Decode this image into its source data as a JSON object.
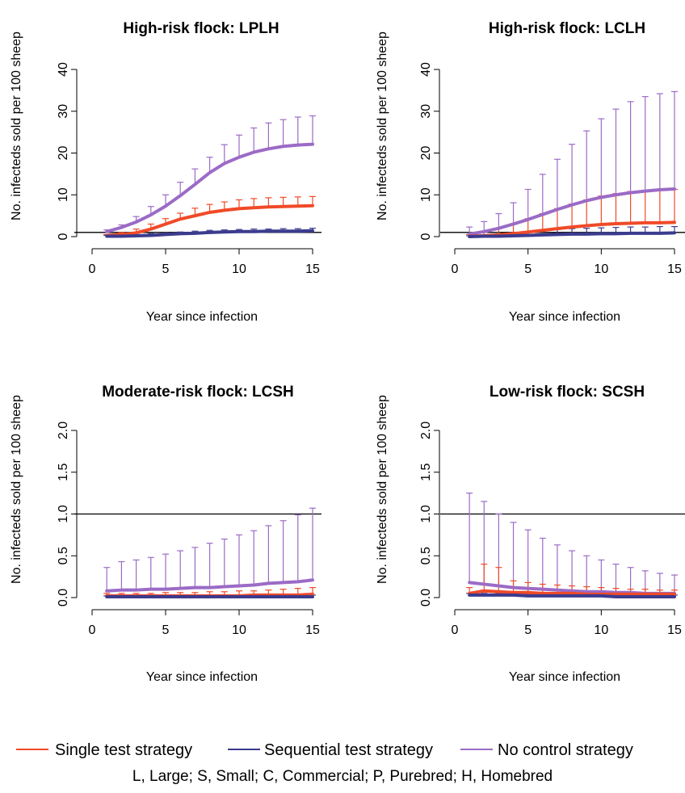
{
  "colors": {
    "single": "#f04a28",
    "sequential": "#3b3b8e",
    "nocontrol": "#9b6bc6",
    "axis": "#000000",
    "reference_line": "#000000"
  },
  "legend": {
    "items": [
      {
        "label": "Single test strategy",
        "color": "#f04a28"
      },
      {
        "label": "Sequential test strategy",
        "color": "#3b3b8e"
      },
      {
        "label": "No control strategy",
        "color": "#9b6bc6"
      }
    ],
    "note": "L, Large; S, Small; C, Commercial; P, Purebred; H, Homebred"
  },
  "chart_data": [
    {
      "type": "line",
      "title": "High-risk flock: LPLH",
      "xlabel": "Year since infection",
      "ylabel": "No. infecteds sold per 100 sheep",
      "x": [
        1,
        2,
        3,
        4,
        5,
        6,
        7,
        8,
        9,
        10,
        11,
        12,
        13,
        14,
        15
      ],
      "xlim": [
        0,
        15
      ],
      "xticks": [
        0,
        5,
        10,
        15
      ],
      "ylim": [
        0,
        40
      ],
      "yticks": [
        "0",
        "10",
        "20",
        "30",
        "40"
      ],
      "reference_line": 1.0,
      "series": [
        {
          "name": "Single test strategy",
          "key": "single",
          "values": [
            0.3,
            0.5,
            0.9,
            1.8,
            3.0,
            4.2,
            5.0,
            5.8,
            6.3,
            6.7,
            6.9,
            7.1,
            7.2,
            7.3,
            7.4
          ],
          "upper": [
            0.5,
            1.0,
            1.8,
            3.0,
            4.3,
            5.6,
            6.8,
            7.7,
            8.3,
            8.8,
            9.1,
            9.3,
            9.4,
            9.5,
            9.6
          ]
        },
        {
          "name": "Sequential test strategy",
          "key": "sequential",
          "values": [
            0.1,
            0.1,
            0.2,
            0.3,
            0.5,
            0.7,
            0.8,
            1.0,
            1.1,
            1.2,
            1.2,
            1.3,
            1.3,
            1.3,
            1.4
          ],
          "upper": [
            0.3,
            0.4,
            0.5,
            0.7,
            0.9,
            1.1,
            1.3,
            1.5,
            1.6,
            1.7,
            1.8,
            1.8,
            1.9,
            1.9,
            2.0
          ]
        },
        {
          "name": "No control strategy",
          "key": "nocontrol",
          "values": [
            1.2,
            2.2,
            3.5,
            5.2,
            7.3,
            9.8,
            12.5,
            15.3,
            17.5,
            19.0,
            20.2,
            21.0,
            21.6,
            21.9,
            22.1
          ],
          "upper": [
            1.6,
            2.8,
            4.8,
            7.2,
            10.0,
            13.0,
            16.2,
            19.0,
            22.0,
            24.3,
            26.0,
            27.2,
            28.0,
            28.6,
            28.9
          ]
        }
      ]
    },
    {
      "type": "line",
      "title": "High-risk flock: LCLH",
      "xlabel": "Year since infection",
      "ylabel": "No. infecteds sold per 100 sheep",
      "x": [
        1,
        2,
        3,
        4,
        5,
        6,
        7,
        8,
        9,
        10,
        11,
        12,
        13,
        14,
        15
      ],
      "xlim": [
        0,
        15
      ],
      "xticks": [
        0,
        5,
        10,
        15
      ],
      "ylim": [
        0,
        40
      ],
      "yticks": [
        "0",
        "10",
        "20",
        "30",
        "40"
      ],
      "reference_line": 1.0,
      "series": [
        {
          "name": "Single test strategy",
          "key": "single",
          "values": [
            0.1,
            0.2,
            0.4,
            0.7,
            1.1,
            1.5,
            1.9,
            2.3,
            2.6,
            2.9,
            3.1,
            3.2,
            3.3,
            3.3,
            3.4
          ],
          "upper": [
            0.5,
            1.0,
            1.9,
            3.0,
            4.3,
            5.5,
            6.7,
            7.8,
            8.8,
            9.7,
            10.3,
            10.8,
            11.0,
            11.2,
            11.3
          ]
        },
        {
          "name": "Sequential test strategy",
          "key": "sequential",
          "values": [
            0.0,
            0.1,
            0.1,
            0.2,
            0.3,
            0.4,
            0.5,
            0.6,
            0.6,
            0.7,
            0.7,
            0.8,
            0.8,
            0.8,
            0.9
          ],
          "upper": [
            0.2,
            0.4,
            0.6,
            0.9,
            1.2,
            1.5,
            1.7,
            1.9,
            2.0,
            2.1,
            2.2,
            2.3,
            2.3,
            2.4,
            2.4
          ]
        },
        {
          "name": "No control strategy",
          "key": "nocontrol",
          "values": [
            0.6,
            1.2,
            2.0,
            3.0,
            4.1,
            5.3,
            6.5,
            7.6,
            8.6,
            9.4,
            10.0,
            10.5,
            10.9,
            11.2,
            11.4
          ],
          "upper": [
            2.3,
            3.6,
            5.5,
            8.1,
            11.3,
            14.9,
            18.5,
            22.1,
            25.3,
            28.2,
            30.5,
            32.3,
            33.5,
            34.2,
            34.7
          ]
        }
      ]
    },
    {
      "type": "line",
      "title": "Moderate-risk flock: LCSH",
      "xlabel": "Year since infection",
      "ylabel": "No. infecteds sold per 100 sheep",
      "x": [
        1,
        2,
        3,
        4,
        5,
        6,
        7,
        8,
        9,
        10,
        11,
        12,
        13,
        14,
        15
      ],
      "xlim": [
        0,
        15
      ],
      "xticks": [
        0,
        5,
        10,
        15
      ],
      "ylim": [
        0,
        2
      ],
      "yticks": [
        "0.0",
        "0.5",
        "1.0",
        "1.5",
        "2.0"
      ],
      "reference_line": 1.0,
      "series": [
        {
          "name": "Single test strategy",
          "key": "single",
          "values": [
            0.02,
            0.02,
            0.02,
            0.02,
            0.02,
            0.02,
            0.02,
            0.02,
            0.02,
            0.02,
            0.03,
            0.03,
            0.03,
            0.03,
            0.04
          ],
          "upper": [
            0.05,
            0.05,
            0.05,
            0.05,
            0.06,
            0.06,
            0.06,
            0.07,
            0.07,
            0.08,
            0.08,
            0.09,
            0.1,
            0.11,
            0.12
          ]
        },
        {
          "name": "Sequential test strategy",
          "key": "sequential",
          "values": [
            0.01,
            0.01,
            0.01,
            0.01,
            0.01,
            0.01,
            0.01,
            0.01,
            0.01,
            0.01,
            0.01,
            0.01,
            0.01,
            0.01,
            0.01
          ],
          "upper": [
            0.02,
            0.02,
            0.02,
            0.02,
            0.02,
            0.02,
            0.02,
            0.02,
            0.03,
            0.03,
            0.03,
            0.03,
            0.03,
            0.03,
            0.03
          ]
        },
        {
          "name": "No control strategy",
          "key": "nocontrol",
          "values": [
            0.08,
            0.09,
            0.09,
            0.1,
            0.1,
            0.11,
            0.12,
            0.12,
            0.13,
            0.14,
            0.15,
            0.17,
            0.18,
            0.19,
            0.21
          ],
          "upper": [
            0.36,
            0.43,
            0.45,
            0.48,
            0.52,
            0.56,
            0.6,
            0.65,
            0.7,
            0.75,
            0.8,
            0.86,
            0.92,
            0.99,
            1.07
          ]
        }
      ]
    },
    {
      "type": "line",
      "title": "Low-risk flock: SCSH",
      "xlabel": "Year since infection",
      "ylabel": "No. infecteds sold per 100 sheep",
      "x": [
        1,
        2,
        3,
        4,
        5,
        6,
        7,
        8,
        9,
        10,
        11,
        12,
        13,
        14,
        15
      ],
      "xlim": [
        0,
        15
      ],
      "xticks": [
        0,
        5,
        10,
        15
      ],
      "ylim": [
        0,
        2
      ],
      "yticks": [
        "0.0",
        "0.5",
        "1.0",
        "1.5",
        "2.0"
      ],
      "reference_line": 1.0,
      "series": [
        {
          "name": "Single test strategy",
          "key": "single",
          "values": [
            0.05,
            0.08,
            0.07,
            0.06,
            0.06,
            0.05,
            0.05,
            0.05,
            0.04,
            0.04,
            0.04,
            0.04,
            0.04,
            0.04,
            0.04
          ],
          "upper": [
            0.12,
            0.4,
            0.36,
            0.2,
            0.18,
            0.16,
            0.15,
            0.14,
            0.13,
            0.12,
            0.11,
            0.1,
            0.1,
            0.09,
            0.09
          ]
        },
        {
          "name": "Sequential test strategy",
          "key": "sequential",
          "values": [
            0.03,
            0.03,
            0.03,
            0.03,
            0.02,
            0.02,
            0.02,
            0.02,
            0.02,
            0.02,
            0.01,
            0.01,
            0.01,
            0.01,
            0.01
          ],
          "upper": [
            0.05,
            0.05,
            0.05,
            0.05,
            0.04,
            0.04,
            0.04,
            0.04,
            0.03,
            0.03,
            0.03,
            0.03,
            0.03,
            0.03,
            0.03
          ]
        },
        {
          "name": "No control strategy",
          "key": "nocontrol",
          "values": [
            0.18,
            0.16,
            0.14,
            0.12,
            0.11,
            0.1,
            0.09,
            0.08,
            0.07,
            0.07,
            0.06,
            0.06,
            0.05,
            0.05,
            0.05
          ],
          "upper": [
            1.25,
            1.15,
            1.0,
            0.9,
            0.81,
            0.71,
            0.63,
            0.56,
            0.5,
            0.45,
            0.4,
            0.36,
            0.32,
            0.29,
            0.27
          ]
        }
      ]
    }
  ]
}
